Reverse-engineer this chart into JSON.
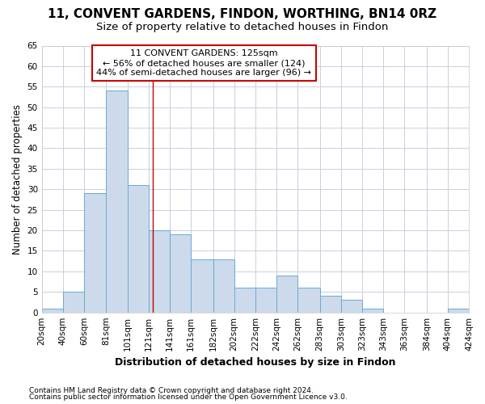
{
  "title1": "11, CONVENT GARDENS, FINDON, WORTHING, BN14 0RZ",
  "title2": "Size of property relative to detached houses in Findon",
  "xlabel": "Distribution of detached houses by size in Findon",
  "ylabel": "Number of detached properties",
  "footnote1": "Contains HM Land Registry data © Crown copyright and database right 2024.",
  "footnote2": "Contains public sector information licensed under the Open Government Licence v3.0.",
  "annotation_line1": "11 CONVENT GARDENS: 125sqm",
  "annotation_line2": "← 56% of detached houses are smaller (124)",
  "annotation_line3": "44% of semi-detached houses are larger (96) →",
  "bar_left_edges": [
    20,
    40,
    60,
    81,
    101,
    121,
    141,
    161,
    182,
    202,
    222,
    242,
    262,
    283,
    303,
    323,
    343,
    363,
    384,
    404
  ],
  "bar_widths": [
    20,
    20,
    21,
    20,
    20,
    20,
    20,
    21,
    20,
    20,
    20,
    20,
    21,
    20,
    20,
    20,
    20,
    21,
    20,
    20
  ],
  "bar_heights": [
    1,
    5,
    29,
    54,
    31,
    20,
    19,
    13,
    13,
    6,
    6,
    9,
    6,
    4,
    3,
    1,
    0,
    0,
    0,
    1
  ],
  "tick_labels": [
    "20sqm",
    "40sqm",
    "60sqm",
    "81sqm",
    "101sqm",
    "121sqm",
    "141sqm",
    "161sqm",
    "182sqm",
    "202sqm",
    "222sqm",
    "242sqm",
    "262sqm",
    "283sqm",
    "303sqm",
    "323sqm",
    "343sqm",
    "363sqm",
    "384sqm",
    "404sqm",
    "424sqm"
  ],
  "bar_facecolor": "#ccdaeb",
  "bar_edgecolor": "#6aaad4",
  "vline_color": "#cc0000",
  "vline_x": 125,
  "ylim": [
    0,
    65
  ],
  "yticks": [
    0,
    5,
    10,
    15,
    20,
    25,
    30,
    35,
    40,
    45,
    50,
    55,
    60,
    65
  ],
  "grid_color": "#c8d0dc",
  "background_color": "#ffffff",
  "axes_background": "#ffffff",
  "annotation_box_color": "white",
  "annotation_box_edge": "#cc0000",
  "title1_fontsize": 11,
  "title2_fontsize": 9.5,
  "xlabel_fontsize": 9,
  "ylabel_fontsize": 8.5,
  "tick_fontsize": 7.5,
  "footnote_fontsize": 6.5
}
